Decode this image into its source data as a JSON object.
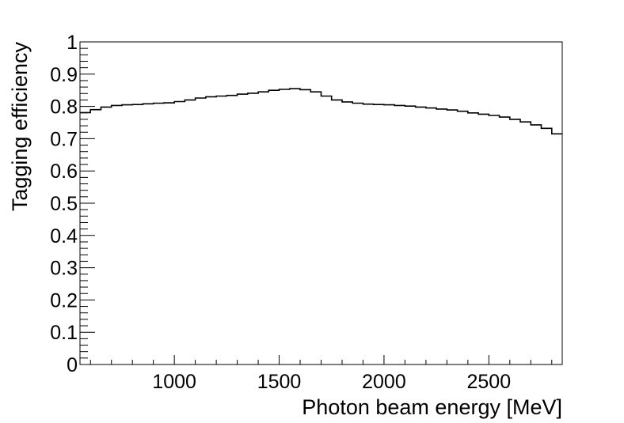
{
  "chart_data": {
    "type": "line",
    "style": "step-histogram",
    "xlabel": "Photon beam energy [MeV]",
    "ylabel": "Tagging efficiency",
    "xlim": [
      550,
      2850
    ],
    "ylim": [
      0,
      1
    ],
    "x_ticks": [
      1000,
      1500,
      2000,
      2500
    ],
    "y_ticks": [
      0,
      0.1,
      0.2,
      0.3,
      0.4,
      0.5,
      0.6,
      0.7,
      0.8,
      0.9,
      1
    ],
    "y_tick_labels": [
      "0",
      "0.1",
      "0.2",
      "0.3",
      "0.4",
      "0.5",
      "0.6",
      "0.7",
      "0.8",
      "0.9",
      "1"
    ],
    "x_tick_labels": [
      "1000",
      "1500",
      "2000",
      "2500"
    ],
    "grid": false,
    "line_color": "#000000",
    "series": [
      {
        "bin_edges": [
          550,
          600,
          650,
          700,
          750,
          800,
          850,
          900,
          950,
          1000,
          1050,
          1100,
          1150,
          1200,
          1250,
          1300,
          1350,
          1400,
          1450,
          1500,
          1550,
          1600,
          1650,
          1700,
          1750,
          1800,
          1850,
          1900,
          1950,
          2000,
          2050,
          2100,
          2150,
          2200,
          2250,
          2300,
          2350,
          2400,
          2450,
          2500,
          2550,
          2600,
          2650,
          2700,
          2750,
          2800,
          2850
        ],
        "values": [
          0.781,
          0.79,
          0.798,
          0.803,
          0.805,
          0.806,
          0.808,
          0.81,
          0.811,
          0.815,
          0.82,
          0.826,
          0.83,
          0.832,
          0.834,
          0.838,
          0.841,
          0.845,
          0.85,
          0.853,
          0.855,
          0.852,
          0.845,
          0.832,
          0.82,
          0.814,
          0.81,
          0.807,
          0.806,
          0.805,
          0.803,
          0.801,
          0.798,
          0.795,
          0.792,
          0.789,
          0.785,
          0.78,
          0.776,
          0.772,
          0.767,
          0.76,
          0.752,
          0.743,
          0.732,
          0.715
        ]
      }
    ]
  }
}
